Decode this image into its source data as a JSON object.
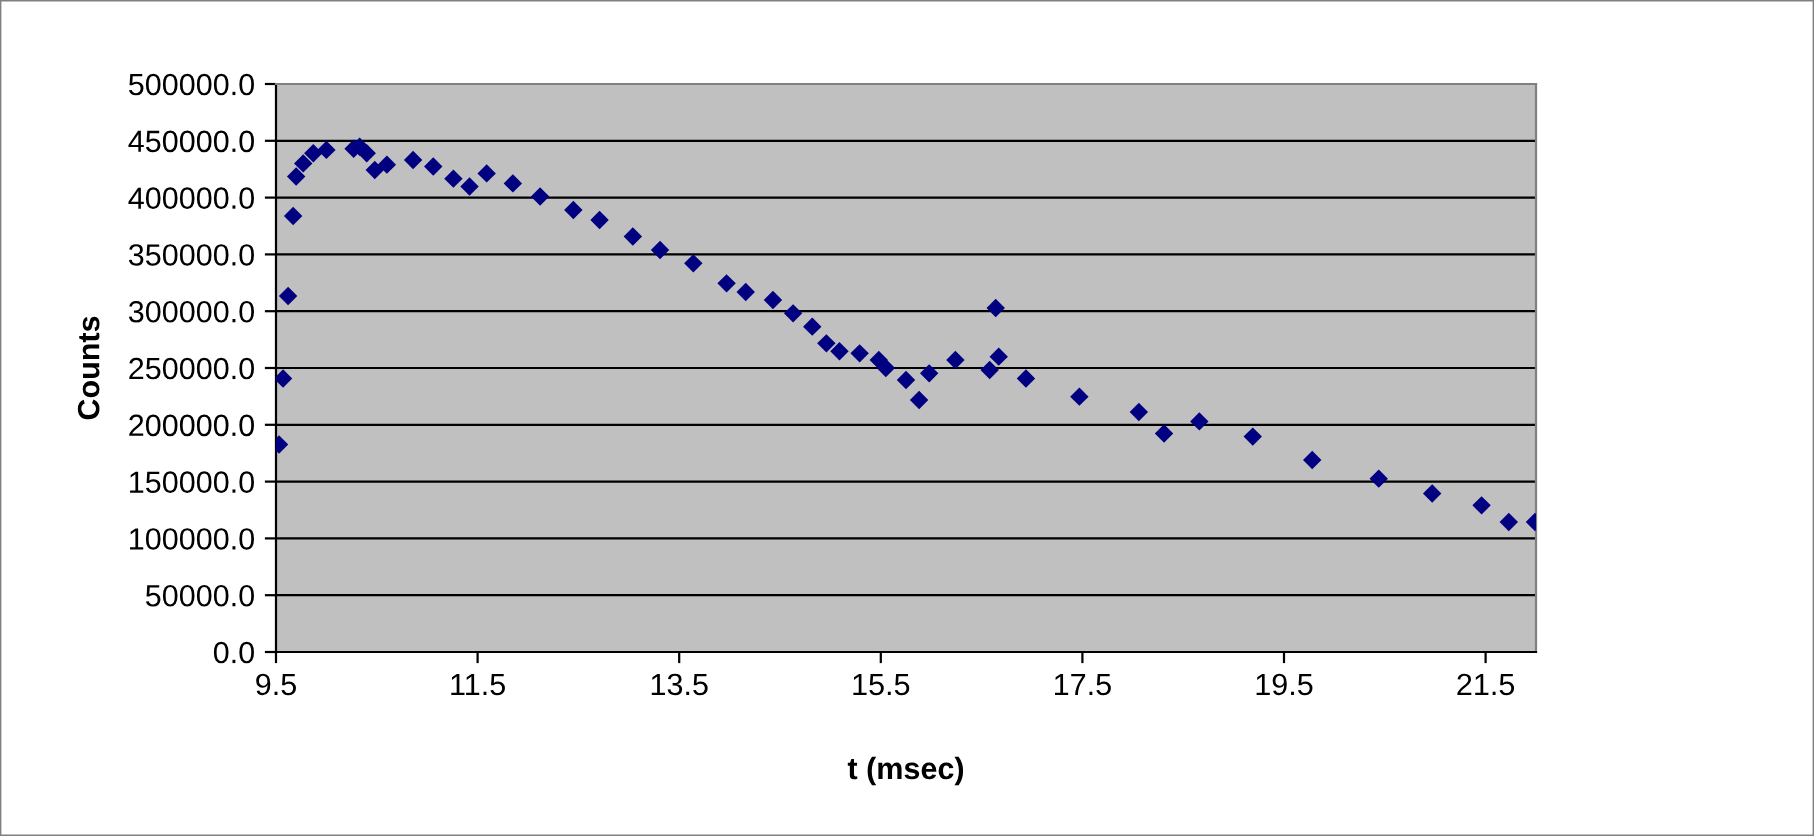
{
  "chart_data": {
    "type": "scatter",
    "xlabel": "t (msec)",
    "ylabel": "Counts",
    "x": [
      9.53,
      9.57,
      9.62,
      9.67,
      9.7,
      9.77,
      9.87,
      10.0,
      10.27,
      10.33,
      10.4,
      10.48,
      10.6,
      10.86,
      11.06,
      11.26,
      11.42,
      11.59,
      11.85,
      12.12,
      12.45,
      12.71,
      13.04,
      13.31,
      13.64,
      13.97,
      14.16,
      14.43,
      14.63,
      14.82,
      14.96,
      15.09,
      15.29,
      15.48,
      15.55,
      15.75,
      15.88,
      15.98,
      16.24,
      16.58,
      16.64,
      16.67,
      16.94,
      17.47,
      18.06,
      18.31,
      18.66,
      19.19,
      19.78,
      20.44,
      20.97,
      21.46,
      21.73,
      21.99
    ],
    "series": [
      {
        "color": "#000080",
        "values": [
          182600,
          240700,
          313400,
          383800,
          418500,
          430100,
          439000,
          442000,
          443000,
          444700,
          439000,
          424300,
          429000,
          433100,
          427300,
          416700,
          409700,
          421300,
          412500,
          400900,
          389100,
          380300,
          365700,
          353900,
          342100,
          324500,
          316900,
          309900,
          298100,
          286400,
          271700,
          264700,
          262900,
          257000,
          250000,
          239400,
          221800,
          245300,
          257000,
          248200,
          302800,
          260000,
          240700,
          224800,
          211300,
          192400,
          203000,
          189600,
          169000,
          152600,
          139600,
          129100,
          114400,
          114400
        ]
      }
    ],
    "marker": "diamond",
    "grid": "y",
    "xlim": [
      9.5,
      22
    ],
    "xticks": [
      9.5,
      11.5,
      13.5,
      15.5,
      17.5,
      19.5,
      21.5
    ],
    "ylim": [
      0,
      500000
    ],
    "yticks": [
      {
        "value": 0,
        "label": "0.0"
      },
      {
        "value": 50000,
        "label": "50000.0"
      },
      {
        "value": 100000,
        "label": "100000.0"
      },
      {
        "value": 150000,
        "label": "150000.0"
      },
      {
        "value": 200000,
        "label": "200000.0"
      },
      {
        "value": 250000,
        "label": "250000.0"
      },
      {
        "value": 300000,
        "label": "300000.0"
      },
      {
        "value": 350000,
        "label": "350000.0"
      },
      {
        "value": 400000,
        "label": "400000.0"
      },
      {
        "value": 450000,
        "label": "450000.0"
      },
      {
        "value": 500000,
        "label": "500000.0"
      }
    ]
  }
}
